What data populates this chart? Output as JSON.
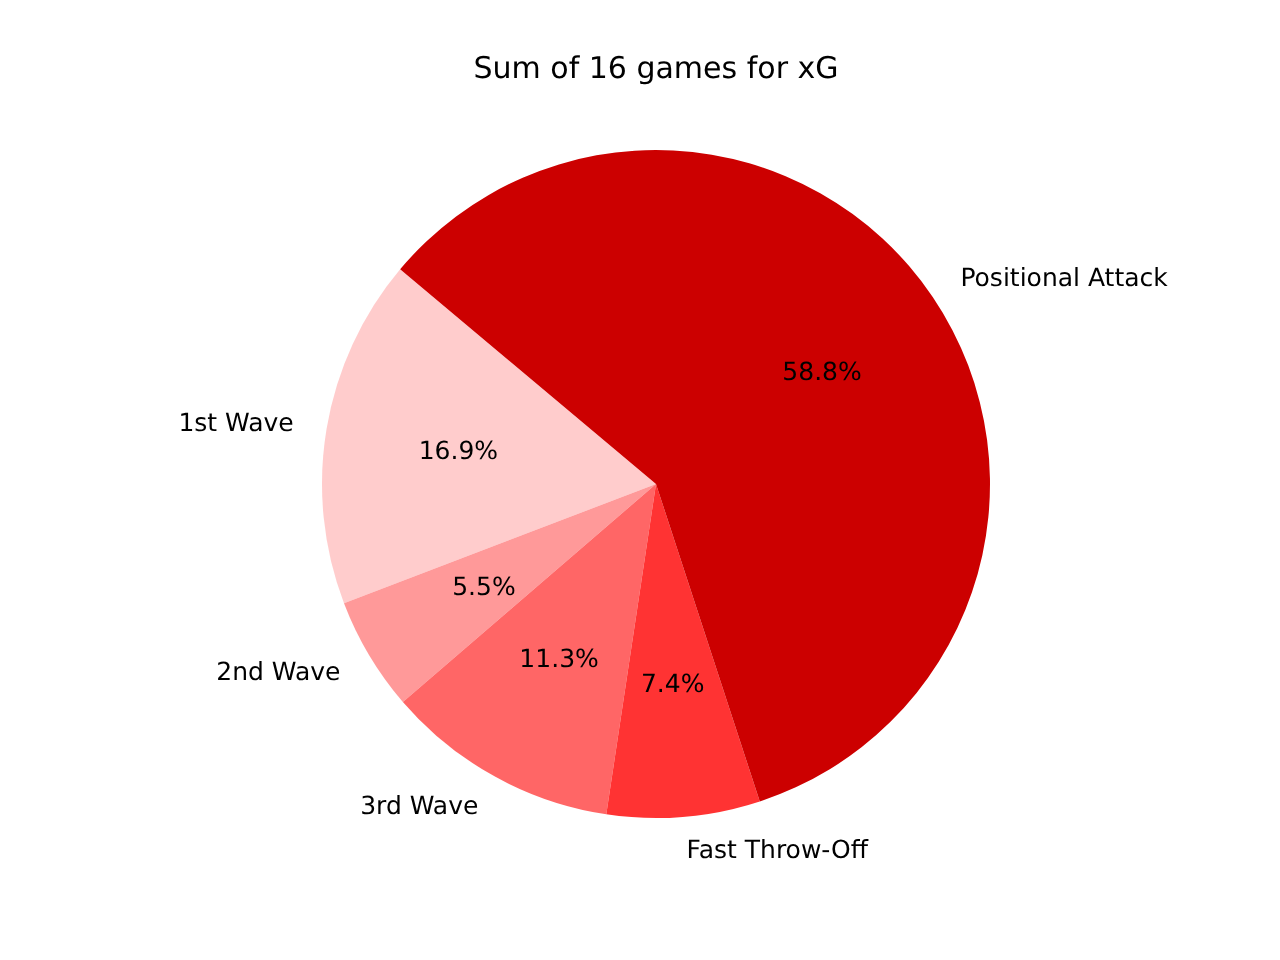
{
  "chart_data": {
    "type": "pie",
    "title": "Sum of 16 games for xG",
    "categories": [
      "1st Wave",
      "2nd Wave",
      "3rd Wave",
      "Fast Throw-Off",
      "Positional Attack"
    ],
    "values": [
      16.9,
      5.5,
      11.3,
      7.4,
      58.8
    ],
    "colors": [
      "#ffcccc",
      "#ff9999",
      "#ff6666",
      "#ff3333",
      "#cc0000"
    ],
    "value_labels": [
      "16.9%",
      "5.5%",
      "11.3%",
      "7.4%",
      "58.8%"
    ]
  }
}
